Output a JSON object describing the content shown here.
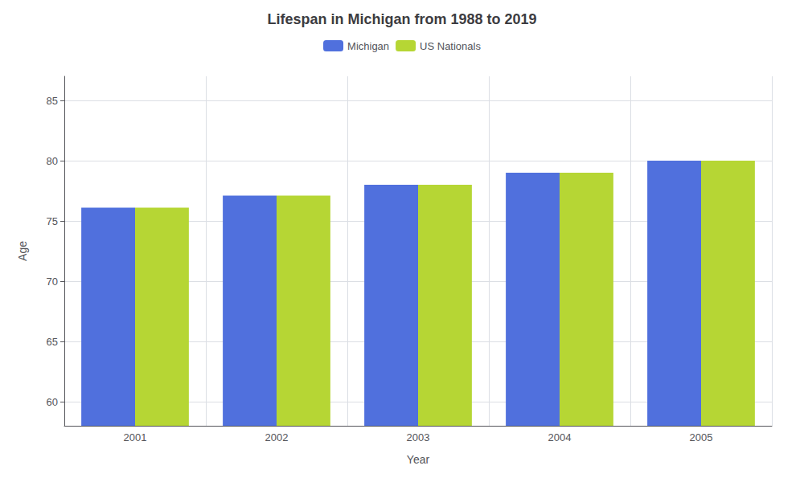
{
  "chart_data": {
    "type": "bar",
    "title": "Lifespan in Michigan from 1988 to 2019",
    "xlabel": "Year",
    "ylabel": "Age",
    "categories": [
      "2001",
      "2002",
      "2003",
      "2004",
      "2005"
    ],
    "series": [
      {
        "name": "Michigan",
        "values": [
          76.1,
          77.1,
          78.0,
          79.0,
          80.0
        ]
      },
      {
        "name": "US Nationals",
        "values": [
          76.1,
          77.1,
          78.0,
          79.0,
          80.0
        ]
      }
    ],
    "ylim": [
      58,
      87
    ],
    "yticks": [
      60,
      65,
      70,
      75,
      80,
      85
    ],
    "grid": true,
    "legend": "top"
  }
}
